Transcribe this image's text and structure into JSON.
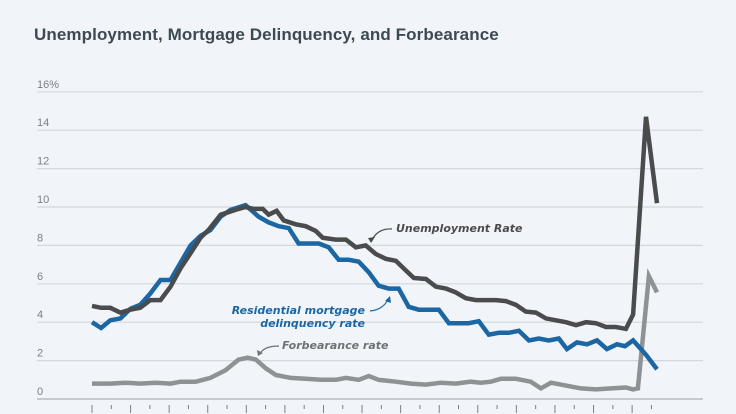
{
  "chart_data": {
    "type": "line",
    "title": "Unemployment, Mortgage Delinquency, and Forbearance",
    "xlabel": "",
    "ylabel": "",
    "ylim": [
      0,
      16
    ],
    "xlim": [
      1991.3,
      2021.9
    ],
    "yticks": [
      {
        "value": 0,
        "label": "0"
      },
      {
        "value": 2,
        "label": "2"
      },
      {
        "value": 4,
        "label": "4"
      },
      {
        "value": 6,
        "label": "6"
      },
      {
        "value": 8,
        "label": "8"
      },
      {
        "value": 10,
        "label": "10"
      },
      {
        "value": 12,
        "label": "12"
      },
      {
        "value": 14,
        "label": "14"
      },
      {
        "value": 16,
        "label": "16%"
      }
    ],
    "xticks_major": [
      1992,
      1994,
      1996,
      1998,
      2000,
      2002,
      2004,
      2006,
      2008,
      2010,
      2012,
      2014,
      2016,
      2018,
      2020
    ],
    "xticks_minor": [
      1993,
      1995,
      1997,
      1999,
      2001,
      2003,
      2005,
      2007,
      2009,
      2011,
      2013,
      2015,
      2017,
      2019,
      2021
    ],
    "grid": true,
    "legend": "inline annotations",
    "series": [
      {
        "name": "Unemployment Rate",
        "color": "#4a4b4d",
        "annotation": "Unemployment Rate",
        "points": [
          [
            1992.0,
            4.85
          ],
          [
            1992.47,
            4.75
          ],
          [
            1992.95,
            4.75
          ],
          [
            1993.47,
            4.5
          ],
          [
            1993.99,
            4.65
          ],
          [
            1994.5,
            4.75
          ],
          [
            1995.03,
            5.15
          ],
          [
            1995.55,
            5.15
          ],
          [
            1996.07,
            5.85
          ],
          [
            1996.59,
            6.8
          ],
          [
            1997.11,
            7.6
          ],
          [
            1997.63,
            8.4
          ],
          [
            1998.04,
            8.8
          ],
          [
            1998.67,
            9.6
          ],
          [
            1999.44,
            9.85
          ],
          [
            1999.96,
            10.0
          ],
          [
            2000.38,
            9.9
          ],
          [
            2000.85,
            9.9
          ],
          [
            2001.16,
            9.6
          ],
          [
            2001.57,
            9.8
          ],
          [
            2001.94,
            9.3
          ],
          [
            2002.56,
            9.1
          ],
          [
            2003.08,
            9.0
          ],
          [
            2003.6,
            8.75
          ],
          [
            2003.96,
            8.4
          ],
          [
            2004.64,
            8.3
          ],
          [
            2005.16,
            8.3
          ],
          [
            2005.68,
            7.9
          ],
          [
            2006.19,
            8.0
          ],
          [
            2006.71,
            7.55
          ],
          [
            2007.23,
            7.3
          ],
          [
            2007.75,
            7.2
          ],
          [
            2008.27,
            6.7
          ],
          [
            2008.68,
            6.3
          ],
          [
            2009.31,
            6.25
          ],
          [
            2009.83,
            5.85
          ],
          [
            2010.35,
            5.75
          ],
          [
            2010.86,
            5.55
          ],
          [
            2011.38,
            5.25
          ],
          [
            2011.9,
            5.15
          ],
          [
            2012.42,
            5.15
          ],
          [
            2012.94,
            5.15
          ],
          [
            2013.46,
            5.1
          ],
          [
            2013.98,
            4.9
          ],
          [
            2014.49,
            4.55
          ],
          [
            2015.01,
            4.5
          ],
          [
            2015.53,
            4.2
          ],
          [
            2016.05,
            4.1
          ],
          [
            2016.57,
            4.0
          ],
          [
            2017.09,
            3.85
          ],
          [
            2017.61,
            4.0
          ],
          [
            2018.12,
            3.95
          ],
          [
            2018.64,
            3.75
          ],
          [
            2019.16,
            3.75
          ],
          [
            2019.68,
            3.65
          ],
          [
            2020.05,
            4.4
          ],
          [
            2020.72,
            14.7
          ],
          [
            2021.29,
            10.2
          ]
        ]
      },
      {
        "name": "Residential mortgage delinquency rate",
        "color": "#1d66a4",
        "annotation": "Residential mortgage delinquency rate",
        "points": [
          [
            1992.0,
            4.0
          ],
          [
            1992.47,
            3.7
          ],
          [
            1992.95,
            4.1
          ],
          [
            1993.47,
            4.2
          ],
          [
            1993.99,
            4.7
          ],
          [
            1994.5,
            4.9
          ],
          [
            1995.03,
            5.5
          ],
          [
            1995.55,
            6.2
          ],
          [
            1996.07,
            6.2
          ],
          [
            1996.59,
            7.1
          ],
          [
            1997.11,
            8.0
          ],
          [
            1997.63,
            8.5
          ],
          [
            1998.14,
            8.8
          ],
          [
            1998.67,
            9.5
          ],
          [
            1999.18,
            9.85
          ],
          [
            1999.96,
            10.1
          ],
          [
            2000.63,
            9.5
          ],
          [
            2001.16,
            9.2
          ],
          [
            2001.68,
            9.0
          ],
          [
            2002.2,
            8.9
          ],
          [
            2002.71,
            8.1
          ],
          [
            2003.23,
            8.1
          ],
          [
            2003.75,
            8.1
          ],
          [
            2004.27,
            7.9
          ],
          [
            2004.79,
            7.25
          ],
          [
            2005.31,
            7.25
          ],
          [
            2005.83,
            7.15
          ],
          [
            2006.35,
            6.6
          ],
          [
            2006.86,
            5.9
          ],
          [
            2007.38,
            5.75
          ],
          [
            2007.9,
            5.75
          ],
          [
            2008.42,
            4.8
          ],
          [
            2008.94,
            4.65
          ],
          [
            2009.46,
            4.65
          ],
          [
            2009.98,
            4.65
          ],
          [
            2010.5,
            3.95
          ],
          [
            2011.01,
            3.95
          ],
          [
            2011.53,
            3.95
          ],
          [
            2012.05,
            4.05
          ],
          [
            2012.57,
            3.35
          ],
          [
            2013.09,
            3.45
          ],
          [
            2013.61,
            3.45
          ],
          [
            2014.13,
            3.55
          ],
          [
            2014.65,
            3.05
          ],
          [
            2015.16,
            3.15
          ],
          [
            2015.68,
            3.05
          ],
          [
            2016.2,
            3.15
          ],
          [
            2016.62,
            2.6
          ],
          [
            2017.14,
            2.95
          ],
          [
            2017.66,
            2.85
          ],
          [
            2018.18,
            3.05
          ],
          [
            2018.69,
            2.6
          ],
          [
            2019.21,
            2.85
          ],
          [
            2019.63,
            2.75
          ],
          [
            2020.05,
            3.05
          ],
          [
            2020.72,
            2.3
          ],
          [
            2021.29,
            1.55
          ]
        ]
      },
      {
        "name": "Forbearance rate",
        "color": "#8f9295",
        "annotation": "Forbearance rate",
        "points": [
          [
            1992.0,
            0.8
          ],
          [
            1992.95,
            0.8
          ],
          [
            1993.73,
            0.85
          ],
          [
            1994.5,
            0.8
          ],
          [
            1995.29,
            0.85
          ],
          [
            1996.07,
            0.8
          ],
          [
            1996.59,
            0.9
          ],
          [
            1997.37,
            0.9
          ],
          [
            1998.14,
            1.1
          ],
          [
            1998.92,
            1.5
          ],
          [
            1999.6,
            2.05
          ],
          [
            2000.07,
            2.15
          ],
          [
            2000.49,
            2.05
          ],
          [
            2001.01,
            1.6
          ],
          [
            2001.53,
            1.25
          ],
          [
            2002.3,
            1.1
          ],
          [
            2003.08,
            1.05
          ],
          [
            2003.86,
            1.0
          ],
          [
            2004.64,
            1.0
          ],
          [
            2005.16,
            1.1
          ],
          [
            2005.83,
            1.0
          ],
          [
            2006.35,
            1.2
          ],
          [
            2006.86,
            1.0
          ],
          [
            2007.75,
            0.9
          ],
          [
            2008.53,
            0.8
          ],
          [
            2009.31,
            0.75
          ],
          [
            2010.09,
            0.85
          ],
          [
            2010.86,
            0.8
          ],
          [
            2011.64,
            0.9
          ],
          [
            2012.16,
            0.85
          ],
          [
            2012.68,
            0.9
          ],
          [
            2013.2,
            1.05
          ],
          [
            2013.98,
            1.05
          ],
          [
            2014.75,
            0.9
          ],
          [
            2015.27,
            0.55
          ],
          [
            2015.79,
            0.85
          ],
          [
            2016.57,
            0.7
          ],
          [
            2017.35,
            0.55
          ],
          [
            2018.12,
            0.5
          ],
          [
            2018.9,
            0.55
          ],
          [
            2019.68,
            0.6
          ],
          [
            2020.05,
            0.5
          ],
          [
            2020.3,
            0.55
          ],
          [
            2020.87,
            6.4
          ],
          [
            2021.29,
            5.55
          ]
        ]
      }
    ],
    "annotations": [
      {
        "text": "Unemployment Rate",
        "series": "Unemployment Rate"
      },
      {
        "text_line1": "Residential mortgage",
        "text_line2": "delinquency rate",
        "series": "Residential mortgage delinquency rate"
      },
      {
        "text": "Forbearance rate",
        "series": "Forbearance rate"
      }
    ]
  }
}
